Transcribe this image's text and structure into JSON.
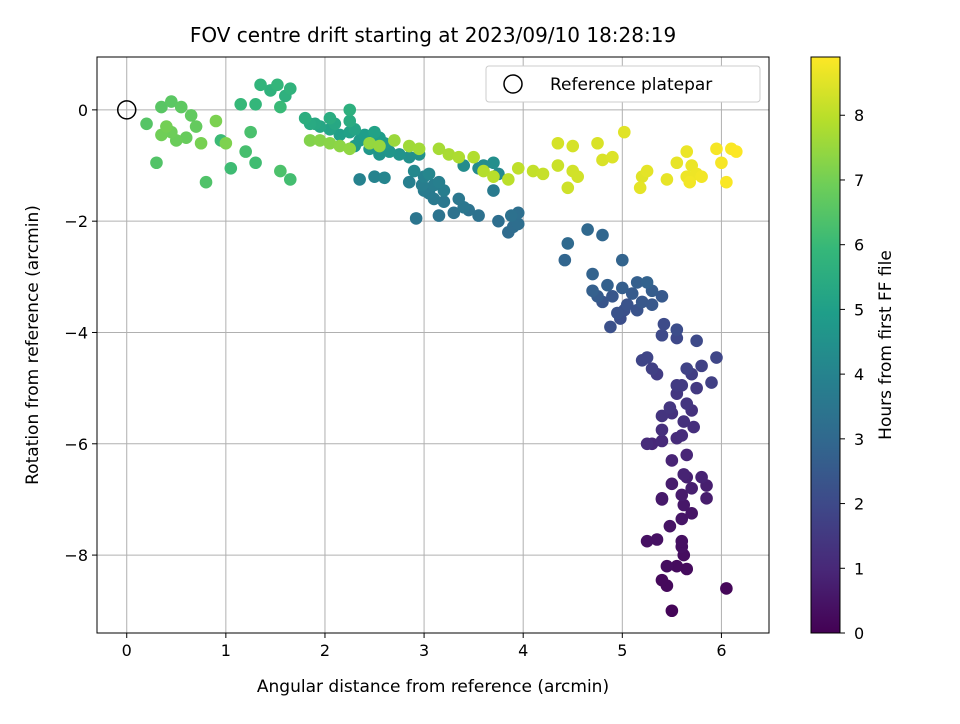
{
  "chart_data": {
    "type": "scatter",
    "title": "FOV centre drift starting at 2023/09/10 18:28:19",
    "xlabel": "Angular distance from reference (arcmin)",
    "ylabel": "Rotation from reference (arcmin)",
    "xlim": [
      -0.3,
      6.48
    ],
    "ylim": [
      -9.4,
      0.95
    ],
    "xticks": [
      0,
      1,
      2,
      3,
      4,
      5,
      6
    ],
    "yticks": [
      -8,
      -6,
      -4,
      -2,
      0
    ],
    "grid": true,
    "legend": {
      "placement": "top-right",
      "entries": [
        "Reference platepar"
      ]
    },
    "reference_point": {
      "x": 0,
      "y": 0
    },
    "colorbar": {
      "label": "Hours from first FF file",
      "colormap": "viridis",
      "range": [
        0,
        8.9
      ],
      "ticks": [
        0,
        1,
        2,
        3,
        4,
        5,
        6,
        7,
        8
      ]
    },
    "colors": {
      "viridis": [
        "#440154",
        "#482878",
        "#3e4989",
        "#31688e",
        "#26828e",
        "#1f9e89",
        "#35b779",
        "#6ece58",
        "#b5de2b",
        "#fde725"
      ]
    },
    "points": [
      [
        5.5,
        -9.0,
        0.1
      ],
      [
        6.05,
        -8.6,
        0.15
      ],
      [
        5.45,
        -8.55,
        0.2
      ],
      [
        5.4,
        -8.45,
        0.2
      ],
      [
        5.65,
        -8.25,
        0.25
      ],
      [
        5.55,
        -8.2,
        0.25
      ],
      [
        5.45,
        -8.2,
        0.3
      ],
      [
        5.62,
        -8.0,
        0.3
      ],
      [
        5.6,
        -7.85,
        0.35
      ],
      [
        5.6,
        -7.75,
        0.35
      ],
      [
        5.35,
        -7.72,
        0.4
      ],
      [
        5.25,
        -7.75,
        0.4
      ],
      [
        5.48,
        -7.48,
        0.45
      ],
      [
        5.6,
        -7.35,
        0.5
      ],
      [
        5.7,
        -7.25,
        0.5
      ],
      [
        5.62,
        -7.1,
        0.55
      ],
      [
        5.4,
        -7.0,
        0.6
      ],
      [
        5.4,
        -6.98,
        0.6
      ],
      [
        5.6,
        -6.92,
        0.65
      ],
      [
        5.85,
        -6.98,
        0.7
      ],
      [
        5.5,
        -6.72,
        0.7
      ],
      [
        5.7,
        -6.8,
        0.75
      ],
      [
        5.85,
        -6.75,
        0.75
      ],
      [
        5.65,
        -6.6,
        0.8
      ],
      [
        5.62,
        -6.55,
        0.85
      ],
      [
        5.8,
        -6.6,
        0.85
      ],
      [
        5.5,
        -6.3,
        0.9
      ],
      [
        5.65,
        -6.2,
        0.95
      ],
      [
        5.3,
        -6.0,
        1.0
      ],
      [
        5.4,
        -5.95,
        1.05
      ],
      [
        5.55,
        -5.9,
        1.1
      ],
      [
        5.25,
        -6.0,
        1.1
      ],
      [
        5.6,
        -5.85,
        1.15
      ],
      [
        5.72,
        -5.7,
        1.2
      ],
      [
        5.4,
        -5.75,
        1.2
      ],
      [
        5.62,
        -5.6,
        1.25
      ],
      [
        5.5,
        -5.45,
        1.3
      ],
      [
        5.7,
        -5.4,
        1.3
      ],
      [
        5.4,
        -5.5,
        1.35
      ],
      [
        5.48,
        -5.35,
        1.4
      ],
      [
        5.65,
        -5.28,
        1.4
      ],
      [
        5.55,
        -5.1,
        1.45
      ],
      [
        5.75,
        -5.0,
        1.5
      ],
      [
        5.55,
        -4.95,
        1.55
      ],
      [
        5.6,
        -4.95,
        1.55
      ],
      [
        5.35,
        -4.75,
        1.6
      ],
      [
        5.7,
        -4.75,
        1.65
      ],
      [
        5.9,
        -4.9,
        1.7
      ],
      [
        5.3,
        -4.65,
        1.7
      ],
      [
        5.8,
        -4.6,
        1.75
      ],
      [
        5.65,
        -4.65,
        1.8
      ],
      [
        5.2,
        -4.5,
        1.85
      ],
      [
        5.25,
        -4.45,
        1.85
      ],
      [
        5.95,
        -4.45,
        1.9
      ],
      [
        5.55,
        -4.1,
        1.95
      ],
      [
        5.4,
        -4.05,
        2.0
      ],
      [
        5.75,
        -4.15,
        2.0
      ],
      [
        5.42,
        -3.85,
        2.05
      ],
      [
        5.55,
        -3.95,
        2.1
      ],
      [
        4.98,
        -3.75,
        2.15
      ],
      [
        4.88,
        -3.9,
        2.2
      ],
      [
        5.02,
        -3.6,
        2.2
      ],
      [
        4.95,
        -3.65,
        2.25
      ],
      [
        5.15,
        -3.6,
        2.3
      ],
      [
        5.05,
        -3.5,
        2.3
      ],
      [
        4.8,
        -3.45,
        2.35
      ],
      [
        4.9,
        -3.35,
        2.4
      ],
      [
        5.2,
        -3.45,
        2.45
      ],
      [
        5.3,
        -3.5,
        2.45
      ],
      [
        5.4,
        -3.35,
        2.5
      ],
      [
        4.75,
        -3.35,
        2.55
      ],
      [
        5.1,
        -3.3,
        2.55
      ],
      [
        5.3,
        -3.25,
        2.6
      ],
      [
        5.0,
        -3.2,
        2.65
      ],
      [
        4.7,
        -3.25,
        2.7
      ],
      [
        5.15,
        -3.1,
        2.7
      ],
      [
        4.85,
        -3.15,
        2.75
      ],
      [
        5.25,
        -3.1,
        2.8
      ],
      [
        4.7,
        -2.95,
        2.8
      ],
      [
        5.0,
        -2.7,
        2.85
      ],
      [
        4.42,
        -2.7,
        2.9
      ],
      [
        4.8,
        -2.25,
        2.95
      ],
      [
        4.65,
        -2.15,
        3.0
      ],
      [
        4.45,
        -2.4,
        3.05
      ],
      [
        3.85,
        -2.2,
        3.1
      ],
      [
        3.9,
        -2.1,
        3.15
      ],
      [
        3.95,
        -2.05,
        3.2
      ],
      [
        3.75,
        -2.0,
        3.2
      ],
      [
        3.95,
        -1.85,
        3.25
      ],
      [
        3.88,
        -1.9,
        3.3
      ],
      [
        3.55,
        -1.9,
        3.3
      ],
      [
        3.45,
        -1.8,
        3.35
      ],
      [
        3.3,
        -1.85,
        3.35
      ],
      [
        3.15,
        -1.9,
        3.4
      ],
      [
        2.92,
        -1.95,
        3.45
      ],
      [
        3.4,
        -1.75,
        3.5
      ],
      [
        3.35,
        -1.6,
        3.55
      ],
      [
        3.2,
        -1.65,
        3.55
      ],
      [
        3.1,
        -1.6,
        3.6
      ],
      [
        3.05,
        -1.5,
        3.65
      ],
      [
        3.7,
        -1.45,
        3.65
      ],
      [
        3.0,
        -1.45,
        3.7
      ],
      [
        3.2,
        -1.45,
        3.75
      ],
      [
        3.1,
        -1.35,
        3.75
      ],
      [
        2.98,
        -1.35,
        3.8
      ],
      [
        3.15,
        -1.3,
        3.85
      ],
      [
        2.85,
        -1.3,
        3.85
      ],
      [
        3.0,
        -1.2,
        3.9
      ],
      [
        2.35,
        -1.25,
        3.95
      ],
      [
        2.5,
        -1.2,
        4.0
      ],
      [
        2.6,
        -1.22,
        4.05
      ],
      [
        3.05,
        -1.15,
        4.1
      ],
      [
        2.9,
        -1.1,
        4.15
      ],
      [
        3.75,
        -1.15,
        4.2
      ],
      [
        3.55,
        -1.05,
        4.25
      ],
      [
        3.4,
        -1.0,
        4.3
      ],
      [
        3.6,
        -1.0,
        4.35
      ],
      [
        3.7,
        -0.95,
        4.4
      ],
      [
        2.85,
        -0.85,
        4.45
      ],
      [
        2.95,
        -0.8,
        4.5
      ],
      [
        2.75,
        -0.8,
        4.55
      ],
      [
        2.55,
        -0.8,
        4.6
      ],
      [
        2.65,
        -0.75,
        4.65
      ],
      [
        2.45,
        -0.7,
        4.7
      ],
      [
        2.3,
        -0.65,
        4.75
      ],
      [
        2.6,
        -0.6,
        4.8
      ],
      [
        2.35,
        -0.55,
        4.85
      ],
      [
        2.55,
        -0.5,
        4.9
      ],
      [
        2.4,
        -0.45,
        4.95
      ],
      [
        2.15,
        -0.45,
        5.0
      ],
      [
        2.25,
        -0.4,
        5.05
      ],
      [
        2.5,
        -0.4,
        5.1
      ],
      [
        2.05,
        -0.35,
        5.15
      ],
      [
        2.3,
        -0.35,
        5.2
      ],
      [
        1.95,
        -0.3,
        5.25
      ],
      [
        2.1,
        -0.25,
        5.3
      ],
      [
        1.9,
        -0.25,
        5.35
      ],
      [
        1.85,
        -0.25,
        5.4
      ],
      [
        2.25,
        -0.2,
        5.45
      ],
      [
        2.05,
        -0.15,
        5.5
      ],
      [
        1.8,
        -0.15,
        5.55
      ],
      [
        2.25,
        0.0,
        5.6
      ],
      [
        1.6,
        0.25,
        5.65
      ],
      [
        1.45,
        0.35,
        5.7
      ],
      [
        1.65,
        0.38,
        5.75
      ],
      [
        1.35,
        0.45,
        5.8
      ],
      [
        1.52,
        0.45,
        5.85
      ],
      [
        1.3,
        0.1,
        5.9
      ],
      [
        1.15,
        0.1,
        5.95
      ],
      [
        1.55,
        0.05,
        6.0
      ],
      [
        0.95,
        -0.55,
        6.05
      ],
      [
        1.05,
        -1.05,
        6.1
      ],
      [
        1.3,
        -0.95,
        6.15
      ],
      [
        1.65,
        -1.25,
        6.2
      ],
      [
        1.2,
        -0.75,
        6.25
      ],
      [
        1.25,
        -0.4,
        6.3
      ],
      [
        1.55,
        -1.1,
        6.35
      ],
      [
        0.8,
        -1.3,
        6.4
      ],
      [
        0.3,
        -0.95,
        6.45
      ],
      [
        0.2,
        -0.25,
        6.5
      ],
      [
        0.35,
        0.05,
        6.55
      ],
      [
        0.45,
        0.15,
        6.6
      ],
      [
        0.55,
        0.05,
        6.65
      ],
      [
        0.65,
        -0.1,
        6.7
      ],
      [
        0.7,
        -0.3,
        6.75
      ],
      [
        0.6,
        -0.5,
        6.8
      ],
      [
        0.5,
        -0.55,
        6.85
      ],
      [
        0.45,
        -0.4,
        6.9
      ],
      [
        0.35,
        -0.45,
        6.95
      ],
      [
        0.4,
        -0.3,
        7.0
      ],
      [
        0.75,
        -0.6,
        7.05
      ],
      [
        0.9,
        -0.2,
        7.1
      ],
      [
        1.0,
        -0.6,
        7.15
      ],
      [
        1.85,
        -0.55,
        7.2
      ],
      [
        1.95,
        -0.55,
        7.25
      ],
      [
        2.05,
        -0.6,
        7.3
      ],
      [
        2.15,
        -0.65,
        7.35
      ],
      [
        2.25,
        -0.7,
        7.4
      ],
      [
        2.45,
        -0.6,
        7.45
      ],
      [
        2.55,
        -0.65,
        7.5
      ],
      [
        2.7,
        -0.55,
        7.55
      ],
      [
        2.85,
        -0.65,
        7.6
      ],
      [
        2.95,
        -0.7,
        7.65
      ],
      [
        3.15,
        -0.7,
        7.7
      ],
      [
        3.25,
        -0.8,
        7.75
      ],
      [
        3.35,
        -0.85,
        7.8
      ],
      [
        3.5,
        -0.85,
        7.85
      ],
      [
        3.6,
        -1.1,
        7.9
      ],
      [
        3.7,
        -1.2,
        7.95
      ],
      [
        3.85,
        -1.25,
        8.0
      ],
      [
        3.95,
        -1.05,
        8.05
      ],
      [
        4.1,
        -1.1,
        8.1
      ],
      [
        4.2,
        -1.15,
        8.15
      ],
      [
        4.35,
        -1.0,
        8.2
      ],
      [
        4.45,
        -1.4,
        8.25
      ],
      [
        4.5,
        -1.1,
        8.3
      ],
      [
        4.55,
        -1.2,
        8.3
      ],
      [
        4.35,
        -0.6,
        8.35
      ],
      [
        4.5,
        -0.65,
        8.35
      ],
      [
        4.75,
        -0.6,
        8.4
      ],
      [
        4.8,
        -0.9,
        8.4
      ],
      [
        4.9,
        -0.85,
        8.45
      ],
      [
        5.02,
        -0.4,
        8.5
      ],
      [
        5.2,
        -1.2,
        8.5
      ],
      [
        5.18,
        -1.4,
        8.55
      ],
      [
        5.25,
        -1.1,
        8.55
      ],
      [
        5.45,
        -1.25,
        8.6
      ],
      [
        5.55,
        -0.95,
        8.6
      ],
      [
        5.65,
        -0.75,
        8.65
      ],
      [
        5.7,
        -1.0,
        8.65
      ],
      [
        5.75,
        -1.15,
        8.7
      ],
      [
        5.65,
        -1.2,
        8.7
      ],
      [
        5.68,
        -1.3,
        8.75
      ],
      [
        5.8,
        -1.2,
        8.75
      ],
      [
        5.95,
        -0.7,
        8.8
      ],
      [
        6.0,
        -0.95,
        8.8
      ],
      [
        6.05,
        -1.3,
        8.85
      ],
      [
        6.1,
        -0.7,
        8.85
      ],
      [
        6.15,
        -0.75,
        8.88
      ]
    ]
  }
}
